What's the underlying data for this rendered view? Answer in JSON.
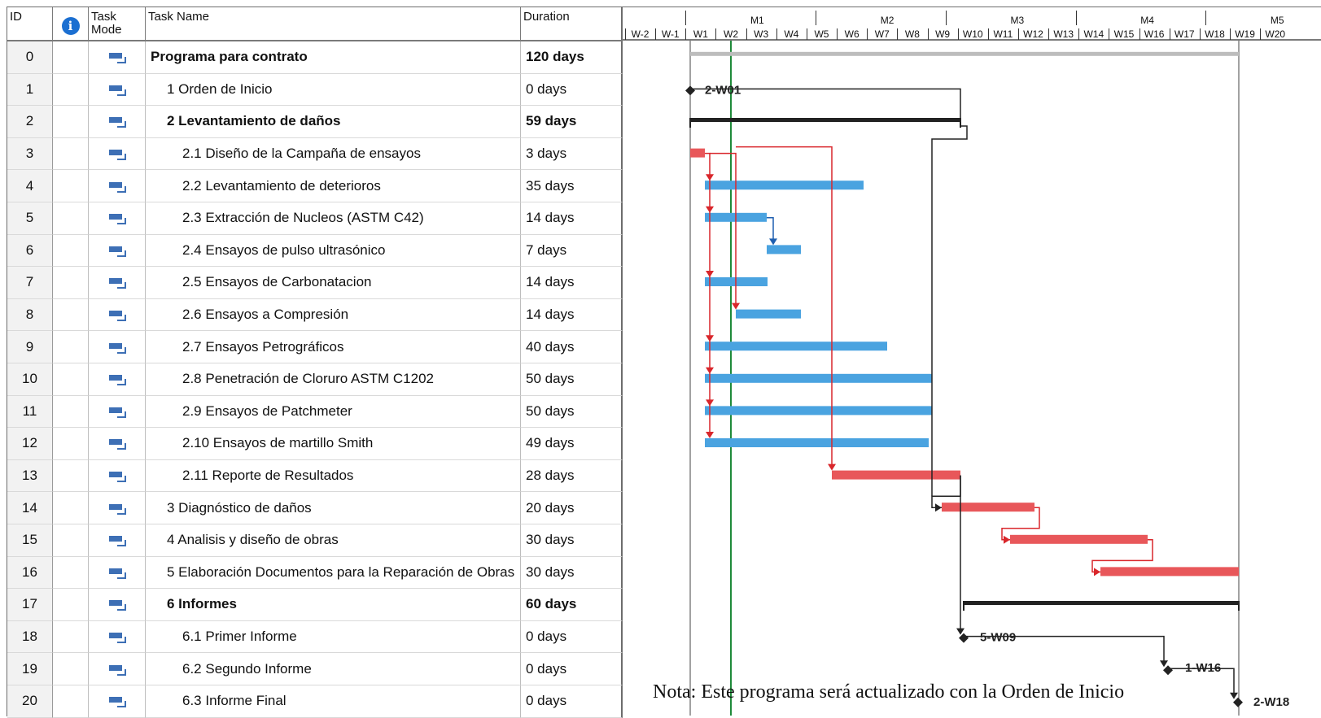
{
  "columns": {
    "id": "ID",
    "info": "i",
    "mode_l1": "Task",
    "mode_l2": "Mode",
    "name": "Task Name",
    "duration": "Duration"
  },
  "timescale": {
    "months": [
      "M1",
      "M2",
      "M3",
      "M4",
      "M5"
    ],
    "weeks": [
      "W-2",
      "W-1",
      "W1",
      "W2",
      "W3",
      "W4",
      "W5",
      "W6",
      "W7",
      "W8",
      "W9",
      "W10",
      "W11",
      "W12",
      "W13",
      "W14",
      "W15",
      "W16",
      "W17",
      "W18",
      "W19",
      "W20"
    ]
  },
  "tasks": [
    {
      "id": "0",
      "name": "Programa para contrato",
      "duration": "120 days",
      "bold": true
    },
    {
      "id": "1",
      "name": "1 Orden de Inicio",
      "duration": "0 days",
      "bold": false
    },
    {
      "id": "2",
      "name": "2 Levantamiento de daños",
      "duration": "59 days",
      "bold": true
    },
    {
      "id": "3",
      "name": "2.1 Diseño de la Campaña de ensayos",
      "duration": "3 days",
      "bold": false
    },
    {
      "id": "4",
      "name": "2.2 Levantamiento de deterioros",
      "duration": "35 days",
      "bold": false
    },
    {
      "id": "5",
      "name": "2.3 Extracción de Nucleos (ASTM C42)",
      "duration": "14 days",
      "bold": false
    },
    {
      "id": "6",
      "name": "2.4 Ensayos de pulso ultrasónico",
      "duration": "7 days",
      "bold": false
    },
    {
      "id": "7",
      "name": "2.5 Ensayos de Carbonatacion",
      "duration": "14 days",
      "bold": false
    },
    {
      "id": "8",
      "name": "2.6 Ensayos a Compresión",
      "duration": "14 days",
      "bold": false
    },
    {
      "id": "9",
      "name": "2.7 Ensayos Petrográficos",
      "duration": "40 days",
      "bold": false
    },
    {
      "id": "10",
      "name": "2.8 Penetración de Cloruro ASTM C1202",
      "duration": "50 days",
      "bold": false
    },
    {
      "id": "11",
      "name": "2.9 Ensayos de Patchmeter",
      "duration": "50 days",
      "bold": false
    },
    {
      "id": "12",
      "name": "2.10 Ensayos de martillo Smith",
      "duration": "49 days",
      "bold": false
    },
    {
      "id": "13",
      "name": "2.11 Reporte de Resultados",
      "duration": "28 days",
      "bold": false
    },
    {
      "id": "14",
      "name": "3 Diagnóstico de daños",
      "duration": "20 days",
      "bold": false
    },
    {
      "id": "15",
      "name": "4 Analisis y diseño de obras",
      "duration": "30 days",
      "bold": false
    },
    {
      "id": "16",
      "name": "5 Elaboración Documentos para la Reparación de Obras",
      "duration": "30 days",
      "bold": false
    },
    {
      "id": "17",
      "name": "6 Informes",
      "duration": "60 days",
      "bold": true
    },
    {
      "id": "18",
      "name": "6.1 Primer Informe",
      "duration": "0 days",
      "bold": false
    },
    {
      "id": "19",
      "name": "6.2 Segundo Informe",
      "duration": "0 days",
      "bold": false
    },
    {
      "id": "20",
      "name": "6.3 Informe Final",
      "duration": "0 days",
      "bold": false
    }
  ],
  "milestone_labels": {
    "m1": "2-W01",
    "m18": "5-W09",
    "m19": "1-W16",
    "m20": "2-W18"
  },
  "note": "Nota: Este programa será actualizado con la Orden de Inicio",
  "colors": {
    "critical": "#e8575a",
    "task": "#4aa3e0",
    "summary": "#222222",
    "link_critical": "#d9262b",
    "link_normal": "#1e5fb0",
    "status_line": "#1f8a3a"
  }
}
